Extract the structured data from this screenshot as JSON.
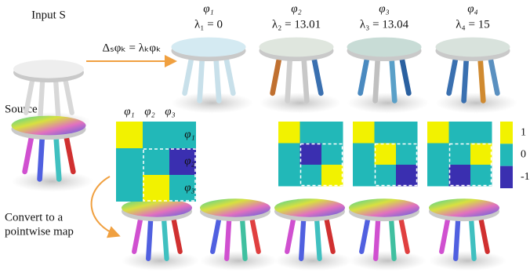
{
  "labels": {
    "input": "Input S",
    "equation": "Δₛφₖ = λₖφₖ",
    "source": "Source",
    "convert_1": "Convert to a",
    "convert_2": "pointwise map"
  },
  "eigen": [
    {
      "phi": "φ₁",
      "lambda": "λ₁ = 0"
    },
    {
      "phi": "φ₂",
      "lambda": "λ₂ = 13.01"
    },
    {
      "phi": "φ₃",
      "lambda": "λ₃ = 13.04"
    },
    {
      "phi": "φ₄",
      "lambda": "λ₄ = 15"
    }
  ],
  "matrix_axis": [
    "φ₁",
    "φ₂",
    "φ₃"
  ],
  "matrices": [
    {
      "values": [
        [
          1,
          0,
          0
        ],
        [
          0,
          0,
          -1
        ],
        [
          0,
          1,
          0
        ]
      ]
    },
    {
      "values": [
        [
          1,
          0,
          0
        ],
        [
          0,
          -1,
          0
        ],
        [
          0,
          0,
          1
        ]
      ]
    },
    {
      "values": [
        [
          1,
          0,
          0
        ],
        [
          0,
          1,
          0
        ],
        [
          0,
          0,
          -1
        ]
      ]
    },
    {
      "values": [
        [
          1,
          0,
          0
        ],
        [
          0,
          0,
          1
        ],
        [
          0,
          -1,
          0
        ]
      ]
    }
  ],
  "colorbar": {
    "ticks": [
      1,
      0,
      -1
    ],
    "colors": {
      "1": "#f2f200",
      "0": "#22b8b8",
      "-1": "#3a2fb0"
    }
  }
}
